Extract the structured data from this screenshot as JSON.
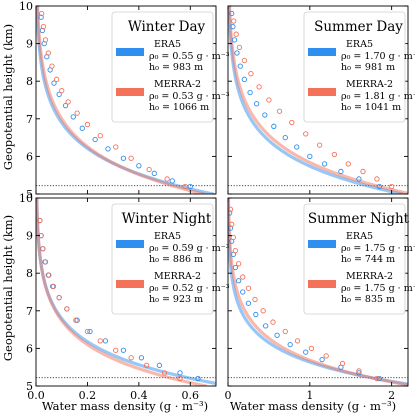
{
  "figure": {
    "ylabel": "Geopotential height (km)",
    "xlabel": "Water mass density (g · m⁻³)"
  },
  "colors": {
    "era5": "#2e8ff0",
    "merra2": "#f4725a"
  },
  "chart_data": [
    {
      "type": "line",
      "title": "Winter Day",
      "xlabel": "",
      "ylabel": "Geopotential height (km)",
      "xlim": [
        0,
        0.7
      ],
      "ylim": [
        5,
        10
      ],
      "xticks": [
        0.0,
        0.2,
        0.4,
        0.6
      ],
      "xtick_labels": [
        "0.0",
        "0.2",
        "0.4",
        "0.6"
      ],
      "yticks": [
        5,
        6,
        7,
        8,
        9,
        10
      ],
      "ytick_labels": [
        "5",
        "6",
        "7",
        "8",
        "9",
        "10"
      ],
      "ref_line_y": 5.22,
      "legend": "top-right",
      "series": [
        {
          "name": "ERA5",
          "rho_label": "ρ₀ = 0.55 g · m⁻³",
          "h_label": "h₀ = 983 m",
          "rho0": 0.55,
          "h0": 983,
          "color": "#2e8ff0",
          "obs": [
            [
              0.6,
              5.2
            ],
            [
              0.53,
              5.35
            ],
            [
              0.46,
              5.55
            ],
            [
              0.4,
              5.75
            ],
            [
              0.34,
              5.95
            ],
            [
              0.28,
              6.2
            ],
            [
              0.23,
              6.45
            ],
            [
              0.18,
              6.75
            ],
            [
              0.145,
              7.05
            ],
            [
              0.115,
              7.35
            ],
            [
              0.09,
              7.65
            ],
            [
              0.07,
              7.95
            ],
            [
              0.055,
              8.3
            ],
            [
              0.042,
              8.65
            ],
            [
              0.032,
              9.0
            ],
            [
              0.025,
              9.35
            ],
            [
              0.02,
              9.7
            ]
          ]
        },
        {
          "name": "MERRA-2",
          "rho_label": "ρ₀ = 0.53 g · m⁻³",
          "h_label": "h₀ = 1066 m",
          "rho0": 0.53,
          "h0": 1066,
          "color": "#f4725a",
          "obs": [
            [
              0.58,
              5.2
            ],
            [
              0.51,
              5.4
            ],
            [
              0.44,
              5.65
            ],
            [
              0.37,
              5.95
            ],
            [
              0.31,
              6.25
            ],
            [
              0.25,
              6.55
            ],
            [
              0.2,
              6.85
            ],
            [
              0.16,
              7.15
            ],
            [
              0.125,
              7.45
            ],
            [
              0.1,
              7.75
            ],
            [
              0.08,
              8.05
            ],
            [
              0.062,
              8.4
            ],
            [
              0.048,
              8.75
            ],
            [
              0.037,
              9.1
            ],
            [
              0.029,
              9.45
            ],
            [
              0.022,
              9.8
            ]
          ]
        }
      ]
    },
    {
      "type": "line",
      "title": "Summer Day",
      "xlabel": "",
      "ylabel": "",
      "xlim": [
        0,
        2.2
      ],
      "ylim": [
        5,
        10
      ],
      "xticks": [
        0,
        1,
        2
      ],
      "xtick_labels": [
        "0",
        "1",
        "2"
      ],
      "yticks": [
        5,
        6,
        7,
        8,
        9,
        10
      ],
      "ytick_labels": [
        "5",
        "6",
        "7",
        "8",
        "9",
        "10"
      ],
      "ref_line_y": 5.22,
      "legend": "top-right",
      "series": [
        {
          "name": "ERA5",
          "rho_label": "ρ₀ = 1.70 g · m⁻³",
          "h_label": "h₀ = 981 m",
          "rho0": 1.7,
          "h0": 981,
          "color": "#2e8ff0",
          "obs": [
            [
              1.85,
              5.2
            ],
            [
              1.6,
              5.4
            ],
            [
              1.38,
              5.6
            ],
            [
              1.18,
              5.8
            ],
            [
              1.0,
              6.0
            ],
            [
              0.84,
              6.25
            ],
            [
              0.7,
              6.5
            ],
            [
              0.56,
              6.8
            ],
            [
              0.45,
              7.1
            ],
            [
              0.35,
              7.4
            ],
            [
              0.27,
              7.7
            ],
            [
              0.2,
              8.05
            ],
            [
              0.15,
              8.4
            ],
            [
              0.11,
              8.75
            ],
            [
              0.08,
              9.1
            ],
            [
              0.06,
              9.45
            ],
            [
              0.045,
              9.8
            ]
          ]
        },
        {
          "name": "MERRA-2",
          "rho_label": "ρ₀ = 1.81 g · m⁻³",
          "h_label": "h₀ = 1041 m",
          "rho0": 1.81,
          "h0": 1041,
          "color": "#f4725a",
          "obs": [
            [
              2.0,
              5.2
            ],
            [
              1.82,
              5.4
            ],
            [
              1.65,
              5.6
            ],
            [
              1.47,
              5.8
            ],
            [
              1.3,
              6.05
            ],
            [
              1.12,
              6.3
            ],
            [
              0.95,
              6.6
            ],
            [
              0.78,
              6.9
            ],
            [
              0.63,
              7.2
            ],
            [
              0.5,
              7.5
            ],
            [
              0.38,
              7.85
            ],
            [
              0.28,
              8.2
            ],
            [
              0.2,
              8.55
            ],
            [
              0.14,
              8.9
            ],
            [
              0.1,
              9.25
            ],
            [
              0.07,
              9.6
            ]
          ]
        }
      ]
    },
    {
      "type": "line",
      "title": "Winter Night",
      "xlabel": "Water mass density (g · m⁻³)",
      "ylabel": "Geopotential height (km)",
      "xlim": [
        0,
        0.7
      ],
      "ylim": [
        5,
        10
      ],
      "xticks": [
        0.0,
        0.2,
        0.4,
        0.6
      ],
      "xtick_labels": [
        "0.0",
        "0.2",
        "0.4",
        "0.6"
      ],
      "yticks": [
        5,
        6,
        7,
        8,
        9,
        10
      ],
      "ytick_labels": [
        "5",
        "6",
        "7",
        "8",
        "9",
        "10"
      ],
      "ref_line_y": 5.22,
      "legend": "top-right",
      "series": [
        {
          "name": "ERA5",
          "rho_label": "ρ₀ = 0.59 g · m⁻³",
          "h_label": "h₀ = 886 m",
          "rho0": 0.59,
          "h0": 886,
          "color": "#2e8ff0",
          "obs": [
            [
              0.63,
              5.2
            ],
            [
              0.56,
              5.35
            ],
            [
              0.48,
              5.55
            ],
            [
              0.41,
              5.75
            ],
            [
              0.34,
              5.95
            ],
            [
              0.27,
              6.2
            ],
            [
              0.21,
              6.45
            ],
            [
              0.16,
              6.75
            ],
            [
              0.12,
              7.05
            ],
            [
              0.09,
              7.35
            ],
            [
              0.065,
              7.65
            ],
            [
              0.048,
              7.95
            ],
            [
              0.035,
              8.3
            ],
            [
              0.026,
              8.65
            ],
            [
              0.02,
              9.0
            ],
            [
              0.015,
              9.4
            ]
          ]
        },
        {
          "name": "MERRA-2",
          "rho_label": "ρ₀ = 0.52 g · m⁻³",
          "h_label": "h₀ = 923 m",
          "rho0": 0.52,
          "h0": 923,
          "color": "#f4725a",
          "obs": [
            [
              0.56,
              5.2
            ],
            [
              0.5,
              5.35
            ],
            [
              0.43,
              5.55
            ],
            [
              0.37,
              5.75
            ],
            [
              0.31,
              5.95
            ],
            [
              0.25,
              6.2
            ],
            [
              0.2,
              6.45
            ],
            [
              0.155,
              6.75
            ],
            [
              0.12,
              7.05
            ],
            [
              0.09,
              7.35
            ],
            [
              0.068,
              7.65
            ],
            [
              0.05,
              7.95
            ],
            [
              0.037,
              8.3
            ],
            [
              0.027,
              8.65
            ],
            [
              0.02,
              9.0
            ],
            [
              0.015,
              9.4
            ]
          ]
        }
      ]
    },
    {
      "type": "line",
      "title": "Summer Night",
      "xlabel": "Water mass density (g · m⁻³)",
      "ylabel": "",
      "xlim": [
        0,
        2.2
      ],
      "ylim": [
        5,
        10
      ],
      "xticks": [
        0,
        1,
        2
      ],
      "xtick_labels": [
        "0",
        "1",
        "2"
      ],
      "yticks": [
        5,
        6,
        7,
        8,
        9,
        10
      ],
      "ytick_labels": [
        "5",
        "6",
        "7",
        "8",
        "9",
        "10"
      ],
      "ref_line_y": 5.22,
      "legend": "top-right",
      "series": [
        {
          "name": "ERA5",
          "rho_label": "ρ₀ = 1.75 g · m⁻³",
          "h_label": "h₀ = 744 m",
          "rho0": 1.75,
          "h0": 744,
          "color": "#2e8ff0",
          "obs": [
            [
              1.85,
              5.2
            ],
            [
              1.6,
              5.35
            ],
            [
              1.38,
              5.5
            ],
            [
              1.15,
              5.7
            ],
            [
              0.95,
              5.9
            ],
            [
              0.76,
              6.1
            ],
            [
              0.6,
              6.35
            ],
            [
              0.46,
              6.6
            ],
            [
              0.34,
              6.9
            ],
            [
              0.25,
              7.2
            ],
            [
              0.18,
              7.5
            ],
            [
              0.13,
              7.8
            ],
            [
              0.09,
              8.15
            ],
            [
              0.065,
              8.5
            ],
            [
              0.045,
              8.85
            ],
            [
              0.03,
              9.2
            ],
            [
              0.02,
              9.6
            ]
          ]
        },
        {
          "name": "MERRA-2",
          "rho_label": "ρ₀ = 1.75 g · m⁻³",
          "h_label": "h₀ = 835 m",
          "rho0": 1.75,
          "h0": 835,
          "color": "#f4725a",
          "obs": [
            [
              1.82,
              5.2
            ],
            [
              1.6,
              5.4
            ],
            [
              1.4,
              5.6
            ],
            [
              1.2,
              5.8
            ],
            [
              1.02,
              6.0
            ],
            [
              0.85,
              6.2
            ],
            [
              0.7,
              6.45
            ],
            [
              0.55,
              6.7
            ],
            [
              0.43,
              7.0
            ],
            [
              0.33,
              7.3
            ],
            [
              0.25,
              7.6
            ],
            [
              0.18,
              7.9
            ],
            [
              0.13,
              8.25
            ],
            [
              0.09,
              8.6
            ],
            [
              0.065,
              8.95
            ],
            [
              0.045,
              9.3
            ],
            [
              0.03,
              9.7
            ]
          ]
        }
      ]
    }
  ]
}
